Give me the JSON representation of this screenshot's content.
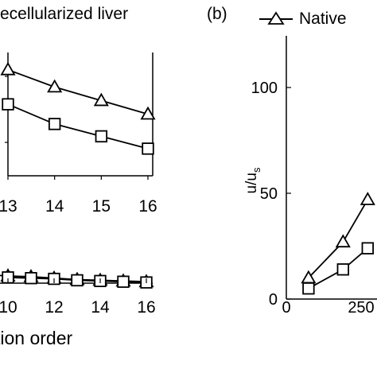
{
  "panel_labels": {
    "b": "(b)"
  },
  "legend_a": {
    "text": "ecellularized liver"
  },
  "legend_b": {
    "text": "Native"
  },
  "chart_data": [
    {
      "type": "line",
      "panel": "a-inset",
      "xlabel": "",
      "ylabel": "",
      "x_ticks": [
        "13",
        "14",
        "15",
        "16"
      ],
      "xlim": [
        13,
        16
      ],
      "ylim": [
        0,
        1
      ],
      "series": [
        {
          "marker": "triangle",
          "x": [
            13,
            14,
            15,
            16
          ],
          "y": [
            0.86,
            0.72,
            0.61,
            0.5
          ]
        },
        {
          "marker": "square",
          "x": [
            13,
            14,
            15,
            16
          ],
          "y": [
            0.58,
            0.42,
            0.32,
            0.22
          ]
        }
      ],
      "legend": "top",
      "grid": false
    },
    {
      "type": "line",
      "panel": "a-main",
      "xlabel": "tion order",
      "ylabel": "",
      "x_ticks": [
        "10",
        "12",
        "14",
        "16"
      ],
      "xlim": [
        9,
        16
      ],
      "series": [
        {
          "marker": "triangle",
          "x": [
            9,
            10,
            11,
            12,
            13,
            14,
            15,
            16
          ],
          "y": [
            0.6,
            0.5,
            0.45,
            0.35,
            0.25,
            0.2,
            0.15,
            0.1
          ]
        },
        {
          "marker": "square",
          "x": [
            10,
            11,
            12,
            13,
            14,
            15,
            16
          ],
          "y": [
            0.4,
            0.35,
            0.3,
            0.2,
            0.15,
            0.1,
            0.05
          ]
        }
      ],
      "grid": false
    },
    {
      "type": "line",
      "panel": "b",
      "xlabel": "",
      "ylabel": "u/us",
      "ylabel_main": "u/u",
      "ylabel_sub": "s",
      "x_ticks": [
        "0",
        "250"
      ],
      "y_ticks": [
        "0",
        "50",
        "100"
      ],
      "xlim": [
        0,
        250
      ],
      "ylim": [
        0,
        130
      ],
      "legend": "top",
      "series": [
        {
          "name": "Native",
          "marker": "triangle",
          "x": [
            90,
            230,
            330
          ],
          "y": [
            10,
            27,
            47
          ]
        },
        {
          "marker": "square",
          "x": [
            90,
            230,
            330
          ],
          "y": [
            5,
            14,
            24
          ]
        }
      ],
      "grid": false
    }
  ]
}
